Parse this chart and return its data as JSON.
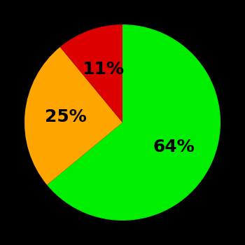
{
  "slices": [
    64,
    25,
    11
  ],
  "colors": [
    "#00ee00",
    "#ffa500",
    "#dd0000"
  ],
  "labels": [
    "64%",
    "25%",
    "11%"
  ],
  "background_color": "#000000",
  "figsize": [
    3.5,
    3.5
  ],
  "dpi": 100,
  "startangle": 90,
  "label_fontsize": 18,
  "label_fontweight": "bold",
  "label_r": 0.58
}
